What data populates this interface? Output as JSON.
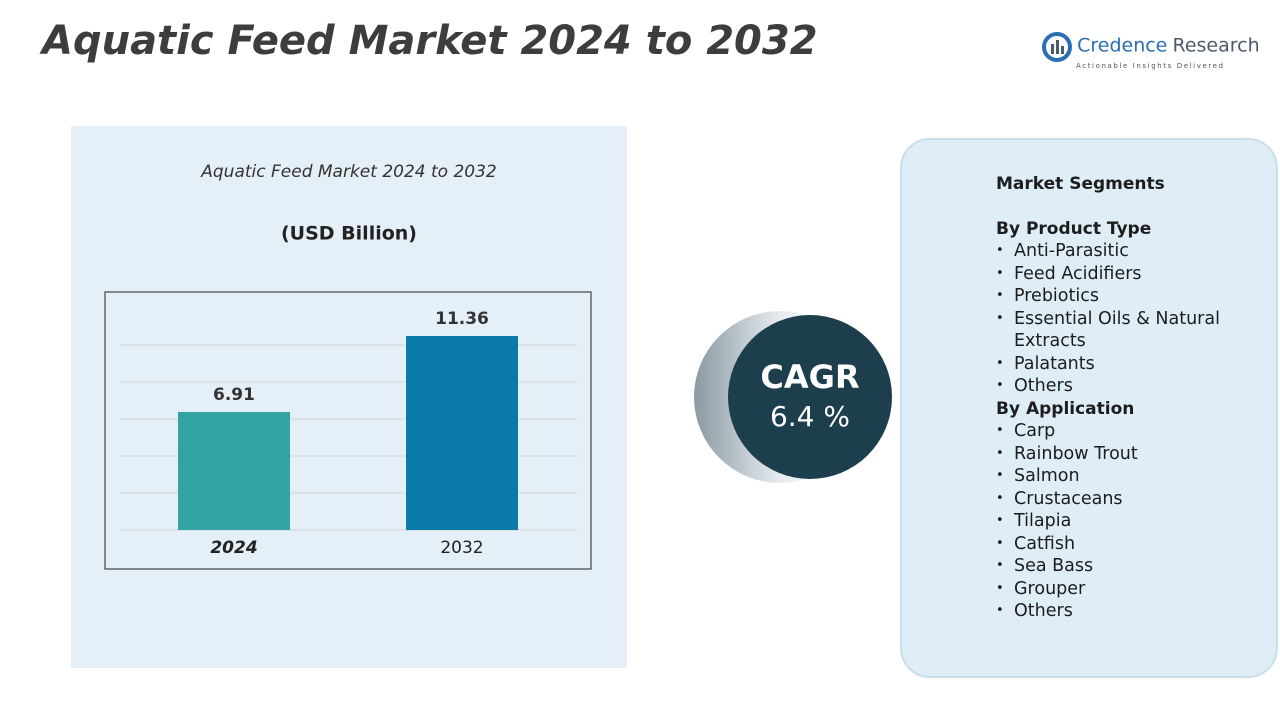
{
  "header": {
    "title": "Aquatic Feed Market 2024 to 2032",
    "logo": {
      "brand": "Credence",
      "brand2": "Research",
      "tagline": "Actionable Insights Delivered"
    }
  },
  "chart_data": {
    "type": "bar",
    "title": "Aquatic Feed Market 2024 to 2032",
    "subtitle": "(USD Billion)",
    "categories": [
      "2024",
      "2032"
    ],
    "values": [
      6.91,
      11.36
    ],
    "colors": [
      "#33a3a3",
      "#0a7aa8"
    ]
  },
  "cagr": {
    "label": "CAGR",
    "value": "6.4 %"
  },
  "segments": {
    "title": "Market Segments",
    "groups": [
      {
        "title": "By Product Type",
        "items": [
          "Anti-Parasitic",
          "Feed Acidifiers",
          "Prebiotics",
          "Essential Oils & Natural Extracts",
          "Palatants",
          "Others"
        ]
      },
      {
        "title": "By Application",
        "items": [
          "Carp",
          "Rainbow Trout",
          "Salmon",
          "Crustaceans",
          "Tilapia",
          "Catfish",
          "Sea Bass",
          "Grouper",
          "Others"
        ]
      }
    ]
  }
}
